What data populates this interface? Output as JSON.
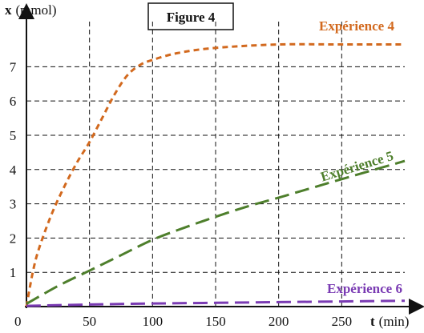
{
  "chart_data": {
    "type": "line",
    "title": "Figure 4",
    "xlabel": {
      "symbol": "t",
      "unit": "(min)"
    },
    "ylabel": {
      "symbol": "x",
      "unit": "(mmol)"
    },
    "xlim": [
      0,
      300
    ],
    "ylim": [
      0,
      8.2
    ],
    "xticks": [
      50,
      100,
      150,
      200,
      250
    ],
    "yticks": [
      1,
      2,
      3,
      4,
      5,
      6,
      7
    ],
    "origin_label": "0",
    "grid": true,
    "series": [
      {
        "name": "Expérience 4",
        "color": "#d2691e",
        "dash": "short",
        "x": [
          0,
          5,
          10,
          20,
          30,
          40,
          50,
          60,
          70,
          80,
          90,
          100,
          120,
          150,
          200,
          250,
          300
        ],
        "y": [
          0,
          1.0,
          1.7,
          2.7,
          3.5,
          4.2,
          4.8,
          5.5,
          6.2,
          6.75,
          7.05,
          7.2,
          7.4,
          7.55,
          7.65,
          7.65,
          7.65
        ]
      },
      {
        "name": "Expérience 5",
        "color": "#4e7f2c",
        "dash": "long",
        "x": [
          0,
          25,
          50,
          75,
          100,
          125,
          150,
          175,
          200,
          225,
          250,
          300
        ],
        "y": [
          0.08,
          0.6,
          1.05,
          1.5,
          1.95,
          2.3,
          2.62,
          2.92,
          3.18,
          3.45,
          3.72,
          4.25
        ]
      },
      {
        "name": "Expérience 6",
        "color": "#7a3bb3",
        "dash": "long",
        "x": [
          0,
          50,
          100,
          150,
          200,
          250,
          300
        ],
        "y": [
          0.02,
          0.06,
          0.09,
          0.11,
          0.13,
          0.15,
          0.17
        ]
      }
    ]
  }
}
